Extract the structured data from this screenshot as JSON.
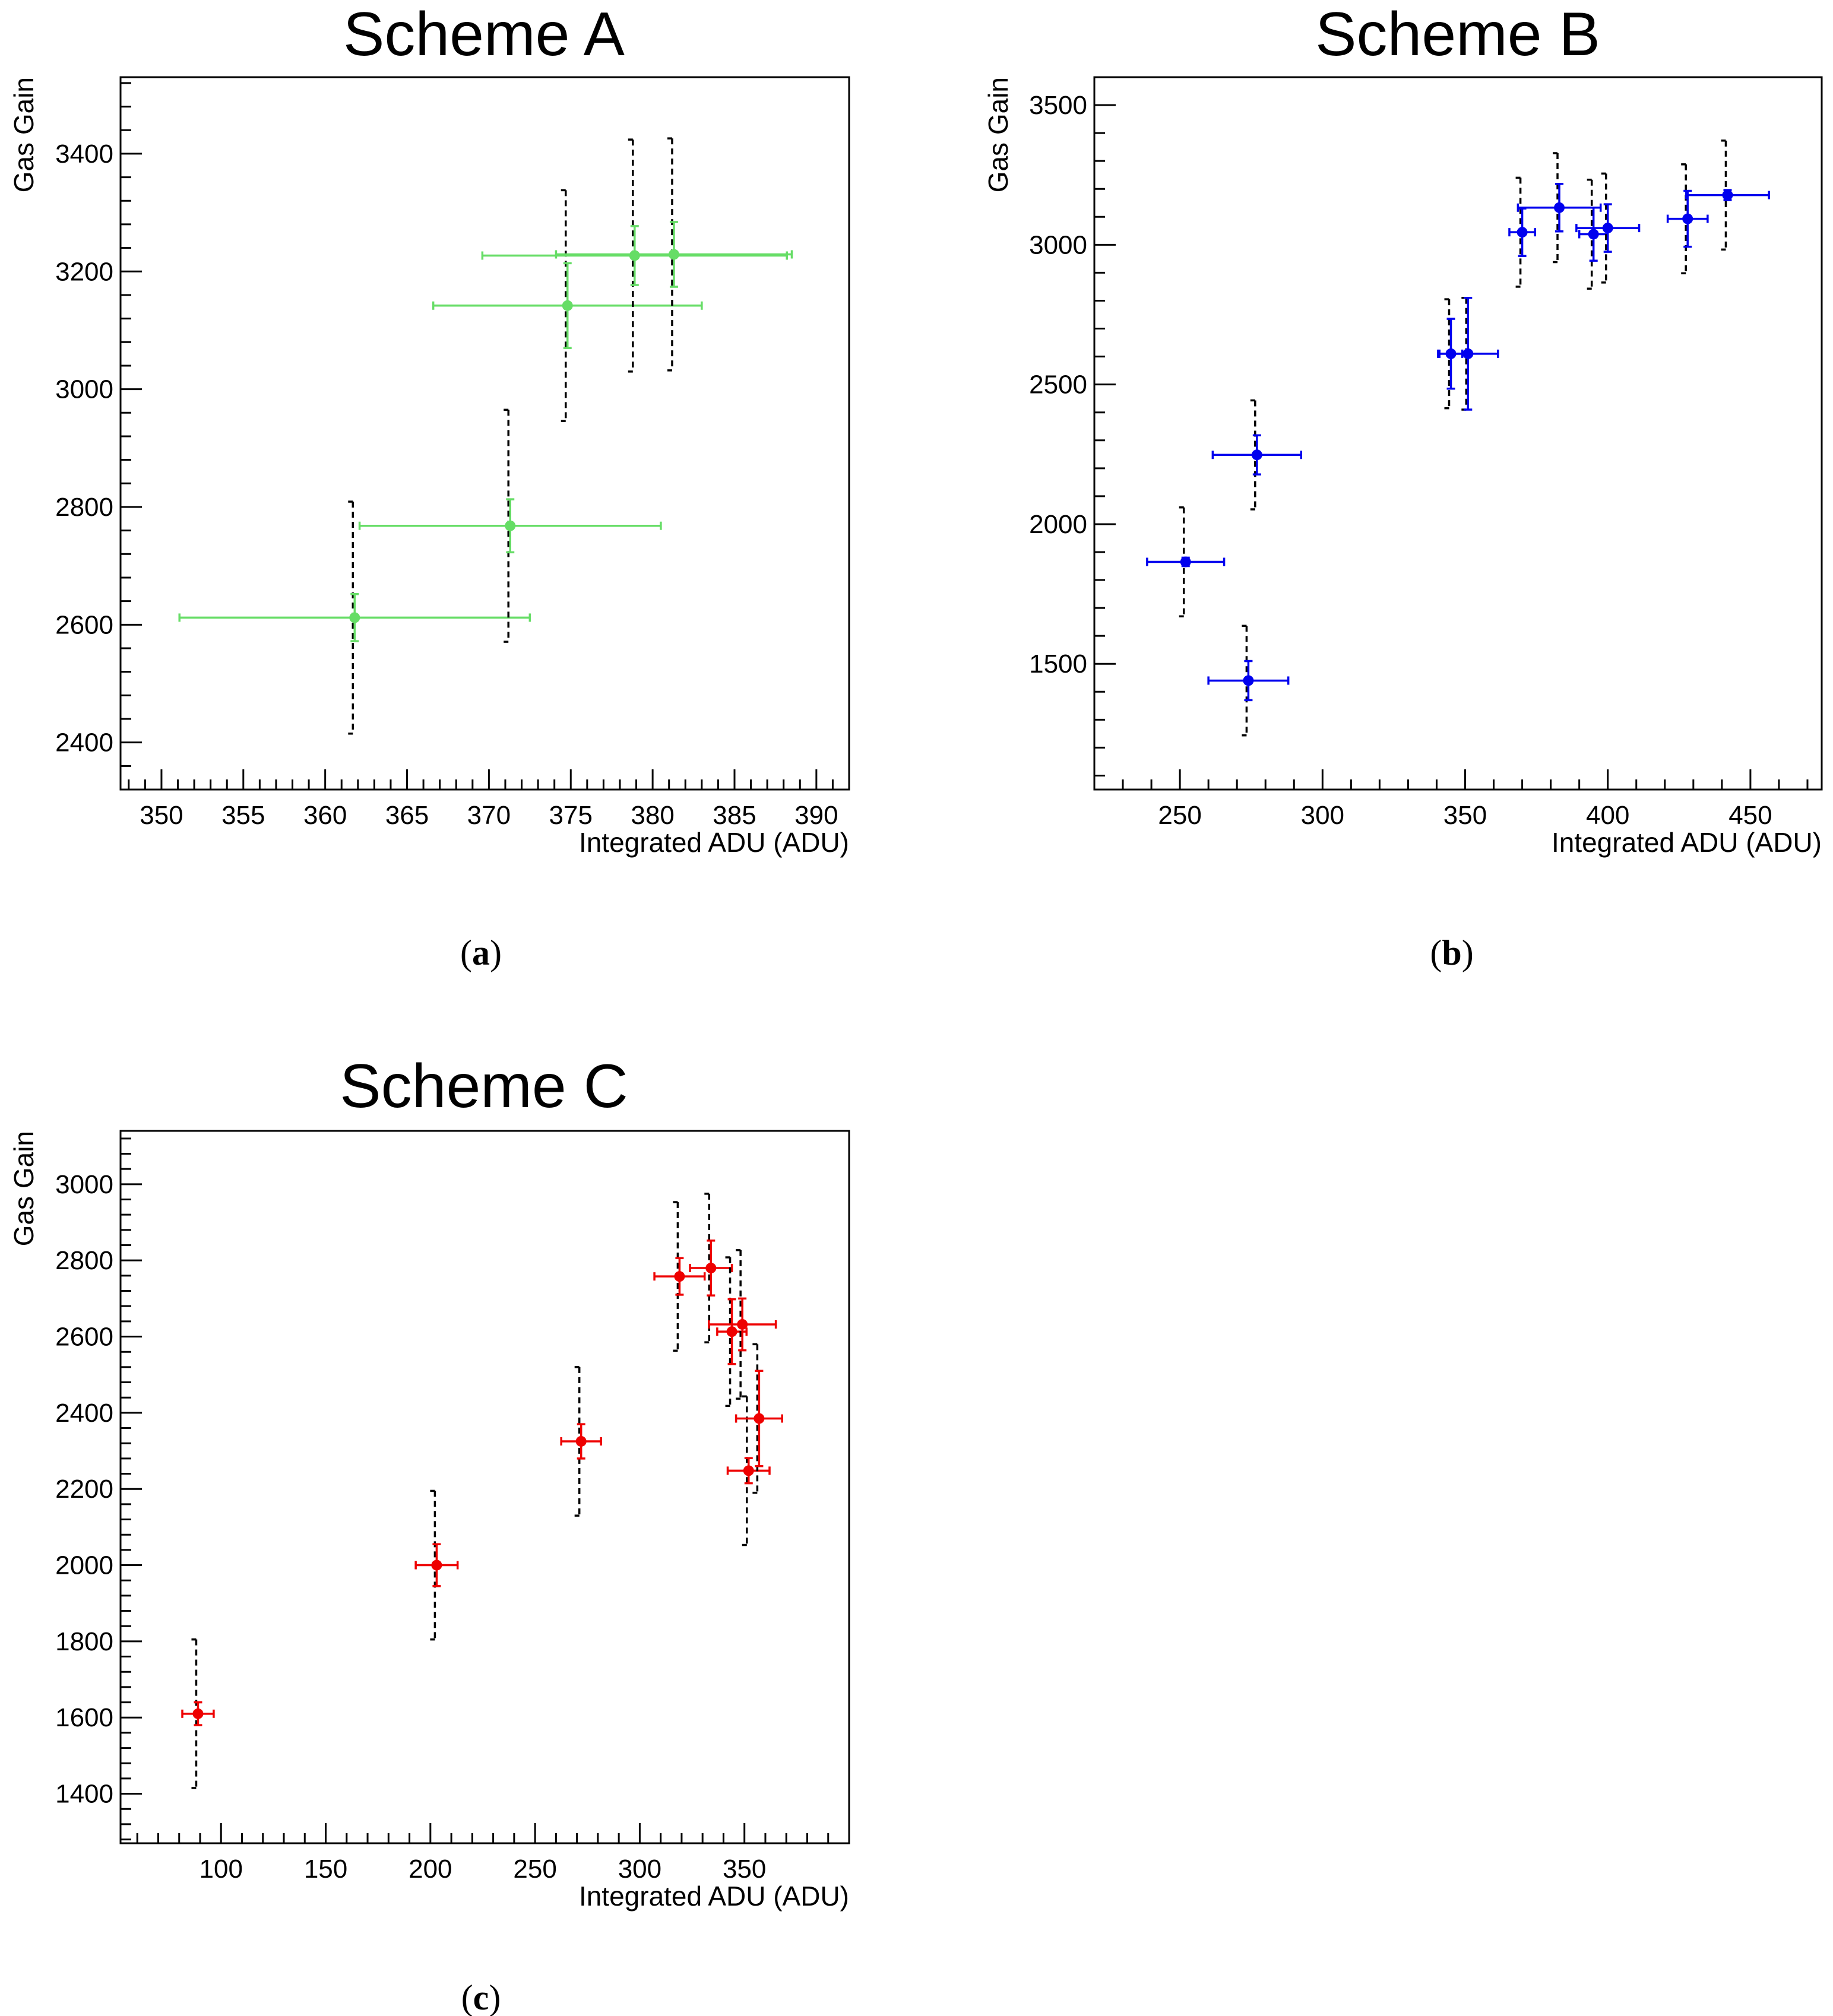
{
  "chart_data": [
    {
      "type": "scatter",
      "panel": "a",
      "caption_label": "a",
      "title": "Scheme A",
      "xlabel": "Integrated ADU (ADU)",
      "ylabel": "Gas Gain",
      "xlim": [
        347.5,
        392
      ],
      "ylim": [
        2320,
        3530
      ],
      "xticks": [
        350,
        355,
        360,
        365,
        370,
        375,
        380,
        385,
        390
      ],
      "yticks": [
        2400,
        2600,
        2800,
        3000,
        3200,
        3400
      ],
      "color": "#66dd66",
      "points": [
        {
          "x": 361.8,
          "y": 2612,
          "xerr": 10.7,
          "yerr": 40,
          "sys": 197
        },
        {
          "x": 371.3,
          "y": 2768,
          "xerr": 9.2,
          "yerr": 45,
          "sys": 197
        },
        {
          "x": 374.8,
          "y": 3142,
          "xerr": 8.2,
          "yerr": 72,
          "sys": 196
        },
        {
          "x": 378.9,
          "y": 3227,
          "xerr": 9.3,
          "yerr": 50,
          "sys": 197
        },
        {
          "x": 381.3,
          "y": 3229,
          "xerr": 7.2,
          "yerr": 55,
          "sys": 197
        }
      ]
    },
    {
      "type": "scatter",
      "panel": "b",
      "caption_label": "b",
      "title": "Scheme B",
      "xlabel": "Integrated ADU (ADU)",
      "ylabel": "Gas Gain",
      "xlim": [
        220,
        475
      ],
      "ylim": [
        1050,
        3600
      ],
      "xticks": [
        250,
        300,
        350,
        400,
        450
      ],
      "yticks": [
        1500,
        2000,
        2500,
        3000,
        3500
      ],
      "color": "#0000ee",
      "points": [
        {
          "x": 252,
          "y": 1865,
          "xerr": 13.5,
          "yerr": 15,
          "sys": 195
        },
        {
          "x": 274,
          "y": 1440,
          "xerr": 14,
          "yerr": 70,
          "sys": 196
        },
        {
          "x": 277,
          "y": 2248,
          "xerr": 15.5,
          "yerr": 70,
          "sys": 195
        },
        {
          "x": 345,
          "y": 2610,
          "xerr": 4,
          "yerr": 125,
          "sys": 195
        },
        {
          "x": 351,
          "y": 2610,
          "xerr": 10.5,
          "yerr": 200,
          "sys": 200
        },
        {
          "x": 370,
          "y": 3045,
          "xerr": 4.5,
          "yerr": 85,
          "sys": 195
        },
        {
          "x": 383,
          "y": 3133,
          "xerr": 14.5,
          "yerr": 85,
          "sys": 195
        },
        {
          "x": 395,
          "y": 3038,
          "xerr": 5,
          "yerr": 95,
          "sys": 195
        },
        {
          "x": 400,
          "y": 3060,
          "xerr": 11,
          "yerr": 85,
          "sys": 195
        },
        {
          "x": 428,
          "y": 3093,
          "xerr": 7,
          "yerr": 100,
          "sys": 195
        },
        {
          "x": 442,
          "y": 3178,
          "xerr": 14.5,
          "yerr": 18,
          "sys": 195
        }
      ]
    },
    {
      "type": "scatter",
      "panel": "c",
      "caption_label": "c",
      "title": "Scheme C",
      "xlabel": "Integrated ADU (ADU)",
      "ylabel": "Gas Gain",
      "xlim": [
        52,
        400
      ],
      "ylim": [
        1270,
        3140
      ],
      "xticks": [
        100,
        150,
        200,
        250,
        300,
        350
      ],
      "yticks": [
        1400,
        1600,
        1800,
        2000,
        2200,
        2400,
        2600,
        2800,
        3000
      ],
      "color": "#ee0000",
      "points": [
        {
          "x": 89,
          "y": 1610,
          "xerr": 7.5,
          "yerr": 30,
          "sys": 195
        },
        {
          "x": 203,
          "y": 2000,
          "xerr": 10,
          "yerr": 55,
          "sys": 195
        },
        {
          "x": 272,
          "y": 2325,
          "xerr": 9.5,
          "yerr": 45,
          "sys": 195
        },
        {
          "x": 319,
          "y": 2758,
          "xerr": 12,
          "yerr": 48,
          "sys": 195
        },
        {
          "x": 334,
          "y": 2780,
          "xerr": 10,
          "yerr": 72,
          "sys": 195
        },
        {
          "x": 344,
          "y": 2613,
          "xerr": 7,
          "yerr": 85,
          "sys": 195
        },
        {
          "x": 349,
          "y": 2632,
          "xerr": 16,
          "yerr": 68,
          "sys": 195
        },
        {
          "x": 352,
          "y": 2248,
          "xerr": 10,
          "yerr": 33,
          "sys": 195
        },
        {
          "x": 357,
          "y": 2385,
          "xerr": 11,
          "yerr": 125,
          "sys": 195
        }
      ]
    }
  ]
}
